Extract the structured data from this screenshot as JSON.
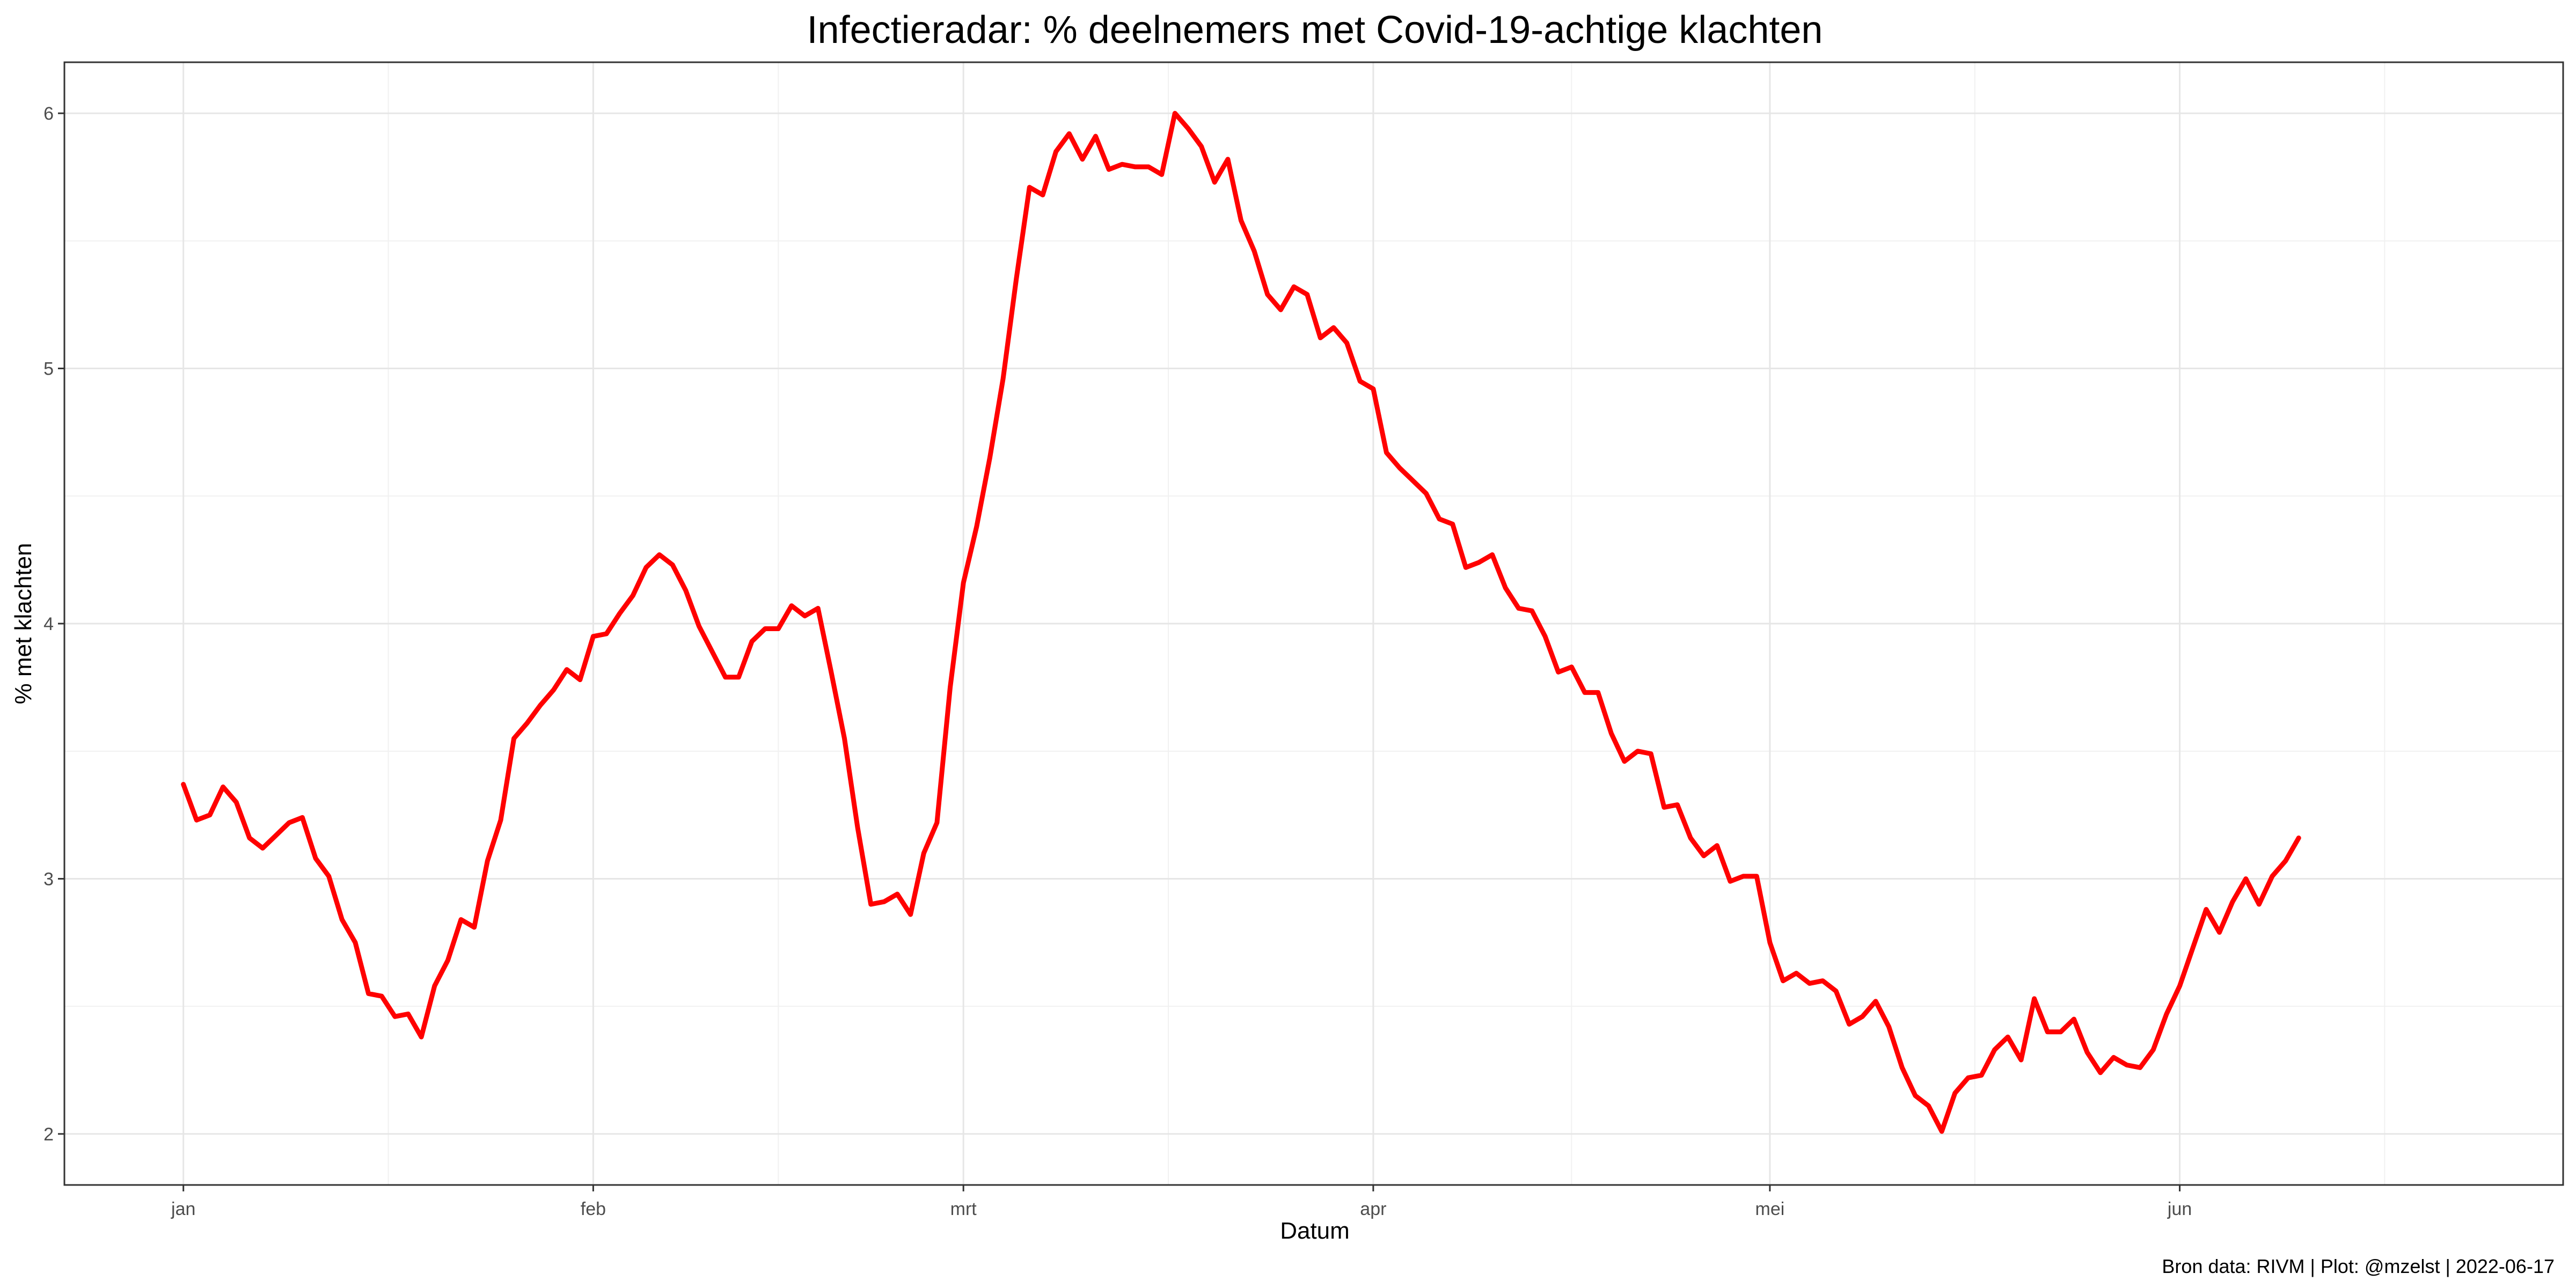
{
  "chart_data": {
    "type": "line",
    "title": "Infectieradar: % deelnemers met Covid-19-achtige klachten",
    "xlabel": "Datum",
    "ylabel": "% met klachten",
    "caption": "Bron data: RIVM  | Plot: @mzelst |  2022-06-17",
    "x_start": "2022-01-01",
    "x_ticks": [
      {
        "label": "jan",
        "date": "2022-01-01"
      },
      {
        "label": "feb",
        "date": "2022-02-01"
      },
      {
        "label": "mrt",
        "date": "2022-03-01"
      },
      {
        "label": "apr",
        "date": "2022-04-01"
      },
      {
        "label": "mei",
        "date": "2022-05-01"
      },
      {
        "label": "jun",
        "date": "2022-06-01"
      }
    ],
    "xlim": [
      "2021-12-23",
      "2022-06-30"
    ],
    "ylim": [
      1.8,
      6.2
    ],
    "y_ticks": [
      2,
      3,
      4,
      5,
      6
    ],
    "grid": true,
    "series": [
      {
        "color": "#ff0000",
        "values": [
          3.37,
          3.23,
          3.25,
          3.36,
          3.3,
          3.16,
          3.12,
          3.17,
          3.22,
          3.24,
          3.08,
          3.01,
          2.84,
          2.75,
          2.55,
          2.54,
          2.46,
          2.47,
          2.38,
          2.58,
          2.68,
          2.84,
          2.81,
          3.07,
          3.23,
          3.55,
          3.61,
          3.68,
          3.74,
          3.82,
          3.78,
          3.95,
          3.96,
          4.04,
          4.11,
          4.22,
          4.27,
          4.23,
          4.13,
          3.99,
          3.89,
          3.79,
          3.79,
          3.93,
          3.98,
          3.98,
          4.07,
          4.03,
          4.06,
          3.81,
          3.55,
          3.2,
          2.9,
          2.91,
          2.94,
          2.86,
          3.1,
          3.22,
          3.75,
          4.16,
          4.38,
          4.65,
          4.96,
          5.35,
          5.71,
          5.68,
          5.85,
          5.92,
          5.82,
          5.91,
          5.78,
          5.8,
          5.79,
          5.79,
          5.76,
          6.0,
          5.94,
          5.87,
          5.73,
          5.82,
          5.58,
          5.46,
          5.29,
          5.23,
          5.32,
          5.29,
          5.12,
          5.16,
          5.1,
          4.95,
          4.92,
          4.67,
          4.61,
          4.56,
          4.51,
          4.41,
          4.39,
          4.22,
          4.24,
          4.27,
          4.14,
          4.06,
          4.05,
          3.95,
          3.81,
          3.83,
          3.73,
          3.73,
          3.57,
          3.46,
          3.5,
          3.49,
          3.28,
          3.29,
          3.16,
          3.09,
          3.13,
          2.99,
          3.01,
          3.01,
          2.75,
          2.6,
          2.63,
          2.59,
          2.6,
          2.56,
          2.43,
          2.46,
          2.52,
          2.42,
          2.26,
          2.15,
          2.11,
          2.01,
          2.16,
          2.22,
          2.23,
          2.33,
          2.38,
          2.29,
          2.53,
          2.4,
          2.4,
          2.45,
          2.32,
          2.24,
          2.3,
          2.27,
          2.26,
          2.33,
          2.47,
          2.58,
          2.73,
          2.88,
          2.79,
          2.91,
          3.0,
          2.9,
          3.01,
          3.07,
          3.16
        ]
      }
    ]
  }
}
